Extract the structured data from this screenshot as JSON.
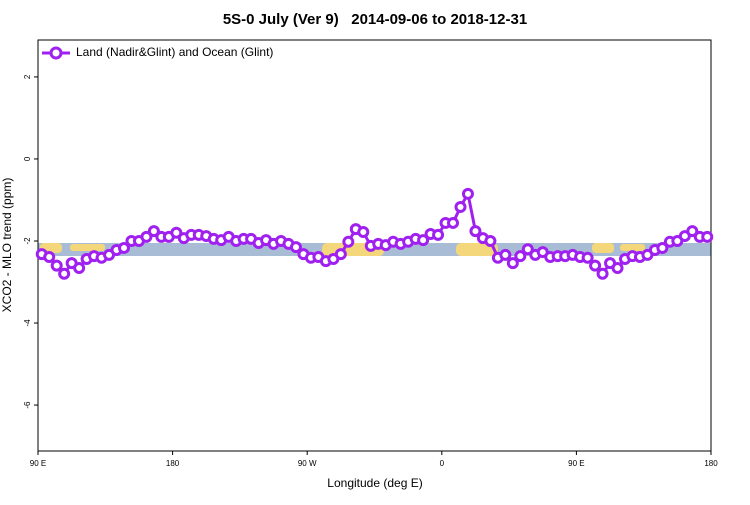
{
  "chart_data": {
    "type": "line",
    "title": "5S-0 July (Ver 9)   2014-09-06 to 2018-12-31",
    "x_label": "Longitude (deg E)",
    "y_label": "XCO2 - MLO trend (ppm)",
    "xlim": [
      90,
      540
    ],
    "xticks": [
      {
        "value": 90,
        "label": "90 E"
      },
      180,
      {
        "value": 270,
        "label": "90 W"
      },
      {
        "value": 360,
        "label": "0"
      },
      {
        "value": 450,
        "label": "90 E"
      },
      {
        "value": 540,
        "label": "180"
      }
    ],
    "ylim": [
      -7.12,
      2.9
    ],
    "yticks": [
      -6,
      -4,
      -2,
      0,
      2
    ],
    "legend": "top-left",
    "x": [
      92.5,
      97.5,
      102.5,
      107.5,
      112.5,
      117.5,
      122.5,
      127.5,
      132.5,
      137.5,
      142.5,
      147.5,
      152.5,
      157.5,
      162.5,
      167.5,
      172.5,
      177.5,
      182.5,
      187.5,
      192.5,
      197.5,
      202.5,
      207.5,
      212.5,
      217.5,
      222.5,
      227.5,
      232.5,
      237.5,
      242.5,
      247.5,
      252.5,
      257.5,
      262.5,
      267.5,
      272.5,
      277.5,
      282.5,
      287.5,
      292.5,
      297.5,
      302.5,
      307.5,
      312.5,
      317.5,
      322.5,
      327.5,
      332.5,
      337.5,
      342.5,
      347.5,
      352.5,
      357.5,
      362.5,
      367.5,
      372.5,
      377.5,
      382.5,
      387.5,
      392.5,
      397.5,
      402.5,
      407.5,
      412.5,
      417.5,
      422.5,
      427.5,
      432.5,
      437.5,
      442.5,
      447.5,
      452.5,
      457.5,
      462.5,
      467.5,
      472.5,
      477.5,
      482.5,
      487.5,
      492.5,
      497.5,
      502.5,
      507.5,
      512.5,
      517.5,
      522.5,
      527.5,
      532.5,
      537.5
    ],
    "series": [
      {
        "name": "Land (Nadir&Glint) and Ocean (Glint)",
        "color": "#a020f0",
        "values": [
          -2.32,
          -2.39,
          -2.6,
          -2.8,
          -2.54,
          -2.66,
          -2.44,
          -2.37,
          -2.41,
          -2.34,
          -2.22,
          -2.17,
          -2.0,
          -2.0,
          -1.9,
          -1.76,
          -1.9,
          -1.9,
          -1.8,
          -1.93,
          -1.85,
          -1.85,
          -1.88,
          -1.95,
          -1.98,
          -1.9,
          -2.0,
          -1.95,
          -1.95,
          -2.05,
          -1.98,
          -2.07,
          -2.0,
          -2.07,
          -2.15,
          -2.32,
          -2.41,
          -2.39,
          -2.49,
          -2.44,
          -2.32,
          -2.02,
          -1.71,
          -1.78,
          -2.12,
          -2.07,
          -2.1,
          -2.02,
          -2.07,
          -2.02,
          -1.95,
          -1.98,
          -1.83,
          -1.85,
          -1.56,
          -1.56,
          -1.17,
          -0.85,
          -1.76,
          -1.93,
          -2.0,
          -2.41,
          -2.34,
          -2.54,
          -2.37,
          -2.2,
          -2.34,
          -2.27,
          -2.39,
          -2.37,
          -2.37,
          -2.34,
          -2.39,
          -2.41,
          -2.6,
          -2.8,
          -2.54,
          -2.66,
          -2.44,
          -2.37,
          -2.39,
          -2.34,
          -2.22,
          -2.17,
          -2.02,
          -2.0,
          -1.88,
          -1.76,
          -1.9,
          -1.9
        ]
      }
    ]
  }
}
